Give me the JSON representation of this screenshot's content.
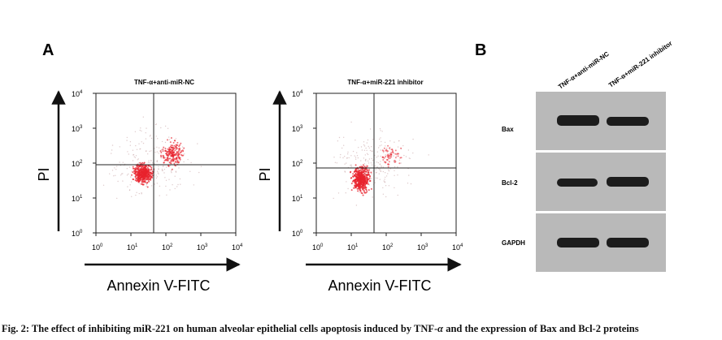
{
  "panel_a": {
    "letter": "A",
    "xlabel": "Annexin V-FITC",
    "ylabel": "PI",
    "ticks": [
      "10",
      "10",
      "10",
      "10",
      "10"
    ],
    "tick_exp": [
      "0",
      "1",
      "2",
      "3",
      "4"
    ],
    "plots": [
      {
        "title": "TNF-α+anti-miR-NC"
      },
      {
        "title": "TNF-α+miR-221 inhibitor"
      }
    ]
  },
  "panel_b": {
    "letter": "B",
    "lanes": [
      "TNF-α+anti-miR-NC",
      "TNF-α+miR-221 inhibitor"
    ],
    "proteins": [
      "Bax",
      "Bcl-2",
      "GAPDH"
    ]
  },
  "caption": {
    "prefix": "Fig. 2: The effect of inhibiting miR-221 on human alveolar epithelial cells apoptosis induced by TNF-",
    "alpha": "α",
    "suffix": " and the expression of Bax and Bcl-2 proteins"
  },
  "colors": {
    "dots": "#e8232e",
    "band": "#1c1c1c",
    "blot_bg": "#b9b9b9"
  }
}
